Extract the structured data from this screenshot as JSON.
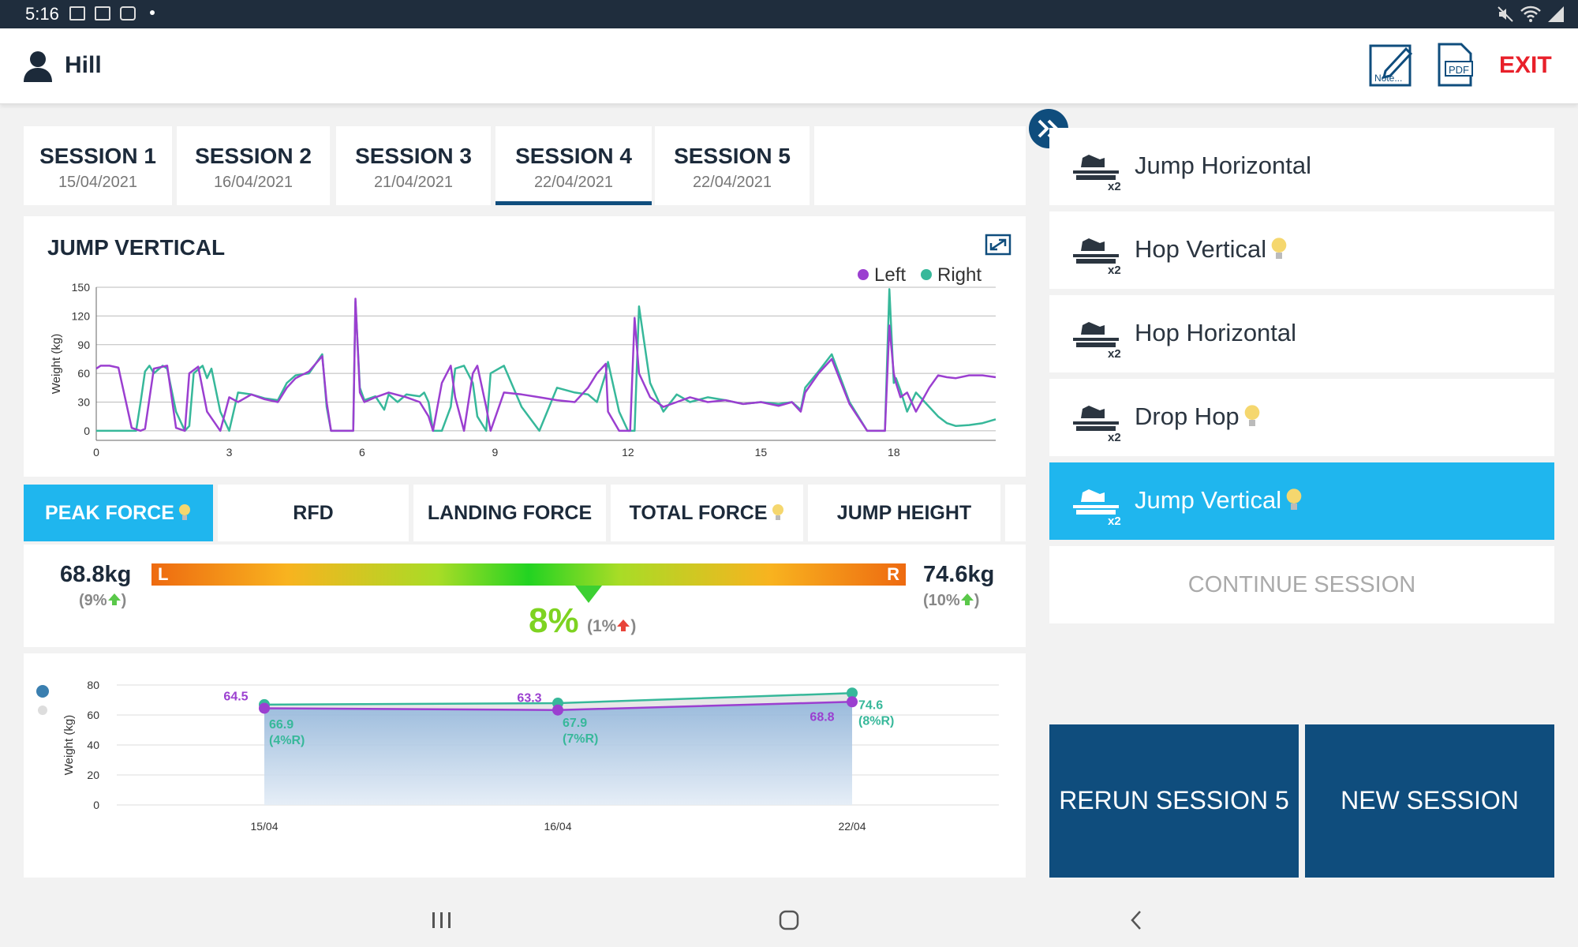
{
  "status": {
    "time": "5:16"
  },
  "header": {
    "username": "Hill",
    "exit_label": "EXIT",
    "note_label": "Note...",
    "pdf_label": "PDF"
  },
  "sessions": [
    {
      "label": "SESSION 1",
      "date": "15/04/2021"
    },
    {
      "label": "SESSION 2",
      "date": "16/04/2021"
    },
    {
      "label": "SESSION 3",
      "date": "21/04/2021"
    },
    {
      "label": "SESSION 4",
      "date": "22/04/2021",
      "active": true
    },
    {
      "label": "SESSION 5",
      "date": "22/04/2021"
    }
  ],
  "colors": {
    "left": "#9b3fd0",
    "right": "#37b89a",
    "accent": "#1fb6ee",
    "dark_blue": "#0f4d7d",
    "exit": "#e8202a"
  },
  "chart_data": [
    {
      "type": "line",
      "title": "JUMP VERTICAL",
      "ylabel": "Weight (kg)",
      "xlabel": "",
      "xlim": [
        0,
        20.3
      ],
      "ylim": [
        -10,
        150
      ],
      "xticks": [
        0,
        3,
        6,
        9,
        12,
        15,
        18
      ],
      "yticks": [
        0,
        30,
        60,
        90,
        120,
        150
      ],
      "grid": true,
      "legend": "top-right",
      "series": [
        {
          "name": "Left",
          "x": [
            0,
            0.1,
            0.3,
            0.5,
            0.8,
            1.0,
            1.1,
            1.3,
            1.6,
            1.8,
            2.0,
            2.1,
            2.3,
            2.5,
            2.8,
            3.0,
            3.2,
            3.5,
            3.8,
            4.1,
            4.3,
            4.5,
            4.8,
            5.1,
            5.2,
            5.3,
            5.35,
            5.6,
            5.8,
            5.85,
            5.95,
            6.05,
            6.3,
            6.6,
            7.0,
            7.3,
            7.5,
            7.6,
            7.8,
            8.0,
            8.1,
            8.3,
            8.5,
            8.6,
            8.8,
            8.9,
            9.2,
            9.6,
            10.0,
            10.4,
            10.8,
            11.1,
            11.3,
            11.5,
            11.55,
            11.8,
            12.0,
            12.05,
            12.15,
            12.25,
            12.5,
            12.8,
            13.1,
            13.4,
            13.8,
            14.2,
            14.6,
            15.0,
            15.4,
            15.7,
            15.9,
            16.0,
            16.3,
            16.6,
            17.0,
            17.4,
            17.6,
            17.7,
            17.8,
            17.9,
            18.0,
            18.05,
            18.15,
            18.3,
            18.5,
            18.8,
            19.0,
            19.2,
            19.4,
            19.7,
            20.0,
            20.3
          ],
          "y": [
            65,
            68,
            68,
            66,
            3,
            0,
            2,
            65,
            68,
            3,
            0,
            60,
            67,
            20,
            0,
            35,
            30,
            38,
            33,
            30,
            45,
            55,
            62,
            78,
            30,
            0,
            0,
            0,
            0,
            138,
            40,
            30,
            35,
            40,
            35,
            30,
            15,
            0,
            50,
            68,
            35,
            0,
            60,
            68,
            25,
            0,
            40,
            38,
            35,
            32,
            30,
            45,
            60,
            70,
            20,
            0,
            0,
            0,
            118,
            60,
            35,
            25,
            30,
            35,
            30,
            32,
            28,
            30,
            26,
            30,
            20,
            40,
            60,
            75,
            28,
            0,
            0,
            0,
            0,
            110,
            60,
            50,
            35,
            40,
            20,
            45,
            58,
            56,
            55,
            58,
            58,
            56
          ]
        },
        {
          "name": "Right",
          "x": [
            0,
            0.5,
            0.9,
            1.0,
            1.1,
            1.2,
            1.3,
            1.5,
            1.6,
            1.8,
            2.0,
            2.1,
            2.2,
            2.4,
            2.5,
            2.6,
            2.8,
            3.0,
            3.2,
            3.5,
            3.8,
            4.1,
            4.3,
            4.5,
            4.8,
            5.1,
            5.2,
            5.3,
            5.35,
            5.6,
            5.8,
            5.85,
            5.95,
            6.05,
            6.3,
            6.5,
            6.6,
            6.8,
            7.0,
            7.3,
            7.4,
            7.5,
            7.6,
            7.8,
            8.0,
            8.1,
            8.3,
            8.5,
            8.6,
            8.8,
            8.9,
            9.2,
            9.6,
            10.0,
            10.4,
            10.8,
            11.1,
            11.3,
            11.5,
            11.55,
            11.8,
            12.0,
            12.05,
            12.15,
            12.25,
            12.5,
            12.8,
            13.1,
            13.4,
            13.8,
            14.2,
            14.6,
            15.0,
            15.4,
            15.7,
            15.9,
            16.0,
            16.3,
            16.6,
            17.0,
            17.4,
            17.6,
            17.7,
            17.8,
            17.9,
            18.0,
            18.05,
            18.15,
            18.3,
            18.5,
            18.8,
            19.0,
            19.2,
            19.4,
            19.7,
            20.0,
            20.3
          ],
          "y": [
            0,
            0,
            0,
            30,
            62,
            68,
            60,
            68,
            65,
            20,
            0,
            5,
            60,
            68,
            55,
            65,
            20,
            0,
            40,
            38,
            34,
            32,
            50,
            58,
            60,
            80,
            25,
            0,
            0,
            0,
            0,
            135,
            45,
            32,
            36,
            22,
            38,
            30,
            38,
            36,
            40,
            30,
            0,
            0,
            25,
            65,
            68,
            50,
            15,
            0,
            60,
            68,
            25,
            0,
            45,
            40,
            38,
            30,
            60,
            72,
            20,
            0,
            0,
            0,
            130,
            50,
            20,
            38,
            30,
            35,
            32,
            28,
            30,
            28,
            30,
            22,
            45,
            62,
            80,
            30,
            0,
            0,
            0,
            0,
            148,
            50,
            55,
            42,
            20,
            40,
            25,
            15,
            8,
            5,
            6,
            8,
            12
          ]
        }
      ]
    },
    {
      "type": "area",
      "ylabel": "Weight (kg)",
      "xlabel": "",
      "categories": [
        "15/04",
        "16/04",
        "22/04"
      ],
      "ylim": [
        0,
        80
      ],
      "yticks": [
        0,
        20,
        40,
        60,
        80
      ],
      "grid": true,
      "series": [
        {
          "values": [
            64.5,
            63.3,
            68.8
          ]
        },
        {
          "values": [
            66.9,
            67.9,
            74.6
          ]
        }
      ],
      "right_sublabels": [
        "(4%R)",
        "(7%R)",
        "(8%R)"
      ]
    }
  ],
  "metric_tabs": [
    {
      "label": "PEAK FORCE",
      "bulb": true,
      "active": true
    },
    {
      "label": "RFD",
      "bulb": false
    },
    {
      "label": "LANDING FORCE",
      "bulb": false
    },
    {
      "label": "TOTAL FORCE",
      "bulb": true
    },
    {
      "label": "JUMP HEIGHT",
      "bulb": false
    }
  ],
  "asymmetry": {
    "left_value": "68.8kg",
    "left_change": "(9%",
    "right_value": "74.6kg",
    "right_change": "(10%",
    "bar_left": "L",
    "bar_right": "R",
    "percent": "8%",
    "percent_change": "(1%",
    "close_paren": ")",
    "pointer_fraction": 0.58
  },
  "exercises": [
    {
      "label": "Jump Horizontal",
      "bulb": false,
      "badge": "x2"
    },
    {
      "label": "Hop Vertical",
      "bulb": true,
      "badge": "x2"
    },
    {
      "label": "Hop Horizontal",
      "bulb": false,
      "badge": "x2"
    },
    {
      "label": "Drop Hop",
      "bulb": true,
      "badge": "x2"
    },
    {
      "label": "Jump Vertical",
      "bulb": true,
      "badge": "x2",
      "active": true
    }
  ],
  "continue_label": "CONTINUE SESSION",
  "buttons": {
    "rerun": "RERUN SESSION 5",
    "new": "NEW SESSION"
  }
}
